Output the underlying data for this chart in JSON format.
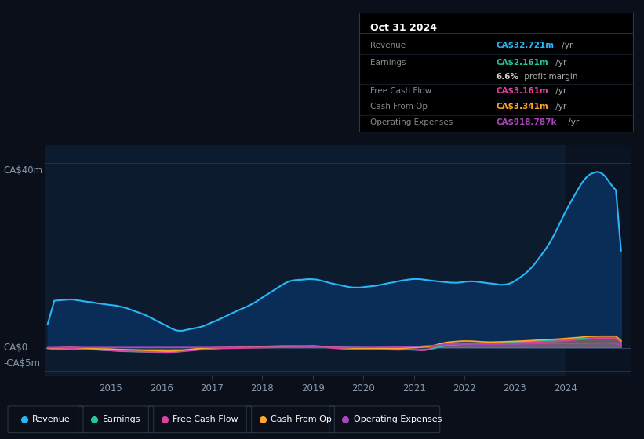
{
  "bg_color": "#0a0f1a",
  "plot_bg_color": "#0d1b2e",
  "y_labels_left": [
    "CA$40m",
    "CA$0",
    "-CA$5m"
  ],
  "x_ticks": [
    2015,
    2016,
    2017,
    2018,
    2019,
    2020,
    2021,
    2022,
    2023,
    2024
  ],
  "legend": [
    {
      "label": "Revenue",
      "color": "#29b6f6"
    },
    {
      "label": "Earnings",
      "color": "#26c6a0"
    },
    {
      "label": "Free Cash Flow",
      "color": "#e040a0"
    },
    {
      "label": "Cash From Op",
      "color": "#ffa726"
    },
    {
      "label": "Operating Expenses",
      "color": "#ab47bc"
    }
  ],
  "revenue_color": "#29b6f6",
  "revenue_fill": "#0a2a4a",
  "earnings_color": "#26c6a0",
  "fcf_color": "#e040a0",
  "cashop_color": "#ffa726",
  "opex_color": "#ab47bc",
  "grid_color": "#1a2a3a",
  "tick_label_color": "#8899aa",
  "ylim": [
    -6,
    44
  ],
  "xlim": [
    2013.7,
    2025.3
  ],
  "info_title": "Oct 31 2024",
  "info_rows": [
    {
      "label": "Revenue",
      "val": "CA$32.721m",
      "suffix": " /yr",
      "val_color": "#29b6f6"
    },
    {
      "label": "Earnings",
      "val": "CA$2.161m",
      "suffix": " /yr",
      "val_color": "#26c6a0"
    },
    {
      "label": "",
      "val": "6.6%",
      "suffix": " profit margin",
      "val_color": "#cccccc"
    },
    {
      "label": "Free Cash Flow",
      "val": "CA$3.161m",
      "suffix": " /yr",
      "val_color": "#e040a0"
    },
    {
      "label": "Cash From Op",
      "val": "CA$3.341m",
      "suffix": " /yr",
      "val_color": "#ffa726"
    },
    {
      "label": "Operating Expenses",
      "val": "CA$918.787k",
      "suffix": " /yr",
      "val_color": "#ab47bc"
    }
  ]
}
